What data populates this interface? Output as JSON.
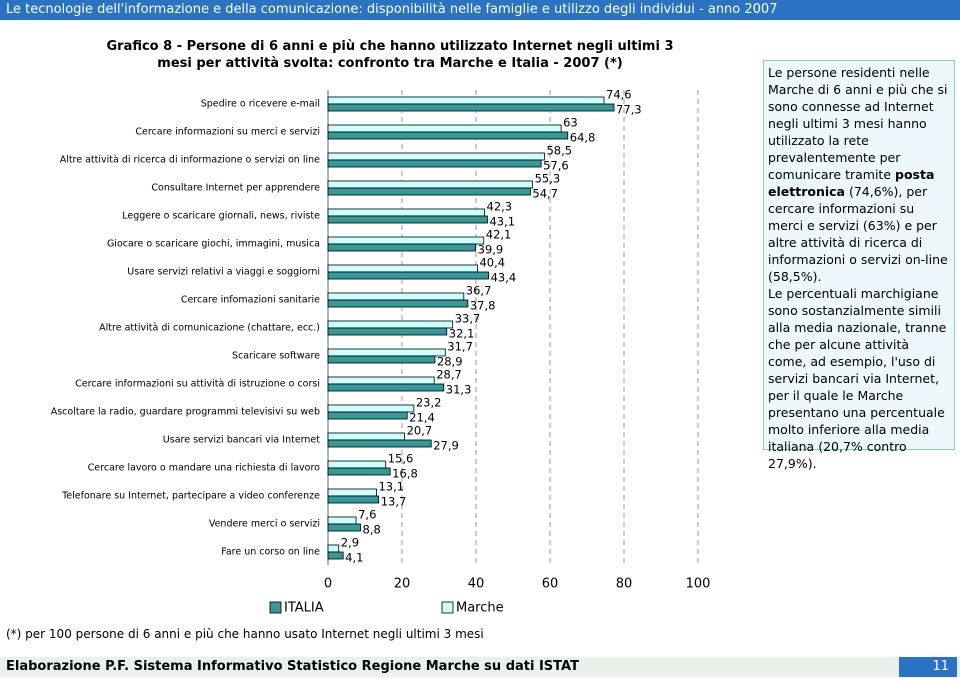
{
  "header": {
    "title": "Le tecnologie dell'informazione e della comunicazione: disponibilità nelle famiglie e utilizzo degli individui - anno 2007"
  },
  "chart_data": {
    "type": "bar",
    "orientation": "horizontal",
    "title": "Grafico 8 - Persone di 6 anni e più che hanno utilizzato Internet negli ultimi 3 mesi per attività svolta: confronto tra Marche e Italia - 2007 (*)",
    "categories": [
      "Spedire o ricevere e-mail",
      "Cercare informazioni su merci e servizi",
      "Altre attività di ricerca di informazione o servizi on line",
      "Consultare Internet per apprendere",
      "Leggere o scaricare giornali, news, riviste",
      "Giocare o scaricare giochi, immagini, musica",
      "Usare servizi relativi a viaggi e soggiorni",
      "Cercare infomazioni sanitarie",
      "Altre attività di comunicazione (chattare, ecc.)",
      "Scaricare software",
      "Cercare informazioni su attività di istruzione o corsi",
      "Ascoltare la radio, guardare programmi televisivi su web",
      "Usare servizi bancari via Internet",
      "Cercare lavoro o mandare una richiesta di lavoro",
      "Telefonare su Internet, partecipare a video conferenze",
      "Vendere merci o servizi",
      "Fare un corso on line"
    ],
    "series": [
      {
        "name": "ITALIA",
        "color": "#339999",
        "values": [
          77.3,
          64.8,
          57.6,
          54.7,
          43.1,
          39.9,
          43.4,
          37.8,
          32.1,
          28.9,
          31.3,
          21.4,
          27.9,
          16.8,
          13.7,
          8.8,
          4.1
        ],
        "value_labels": [
          "77,3",
          "64,8",
          "57,6",
          "54,7",
          "43,1",
          "39,9",
          "43,4",
          "37,8",
          "32,1",
          "28,9",
          "31,3",
          "21,4",
          "27,9",
          "16,8",
          "13,7",
          "8,8",
          "4,1"
        ]
      },
      {
        "name": "Marche",
        "color": "#ccffff",
        "values": [
          74.6,
          63,
          58.5,
          55.3,
          42.3,
          42.1,
          40.4,
          36.7,
          33.7,
          31.7,
          28.7,
          23.2,
          20.7,
          15.6,
          13.1,
          7.6,
          2.9
        ],
        "value_labels": [
          "74,6",
          "63",
          "58,5",
          "55,3",
          "42,3",
          "42,1",
          "40,4",
          "36,7",
          "33,7",
          "31,7",
          "28,7",
          "23,2",
          "20,7",
          "15,6",
          "13,1",
          "7,6",
          "2,9"
        ]
      }
    ],
    "xlim": [
      0,
      100
    ],
    "xticks": [
      0,
      20,
      40,
      60,
      80,
      100
    ],
    "grid": true,
    "footnote": "(*) per 100 persone di 6 anni e più che hanno usato Internet negli ultimi 3 mesi"
  },
  "sidebar": {
    "paragraphs": [
      [
        {
          "text": "Le persone residenti nelle Marche di 6 anni e più che si sono connesse ad Internet negli ultimi 3 mesi hanno utilizzato la rete prevalentemente per comunicare tramite "
        },
        {
          "text": "posta elettronica",
          "bold": true
        },
        {
          "text": " (74,6%), per cercare informazioni su merci e servizi (63%) e per altre attività di ricerca di informazioni o servizi on-line (58,5%)."
        }
      ],
      [
        {
          "text": "Le percentuali marchigiane sono sostanzialmente simili alla media nazionale, tranne che per alcune attività come, ad esempio, l'uso di servizi bancari via Internet, per il quale le Marche presentano una percentuale molto inferiore alla media italiana (20,7% contro 27,9%)."
        }
      ]
    ]
  },
  "footer": {
    "source": "Elaborazione P.F. Sistema Informativo Statistico Regione Marche su dati ISTAT",
    "page": "11"
  }
}
